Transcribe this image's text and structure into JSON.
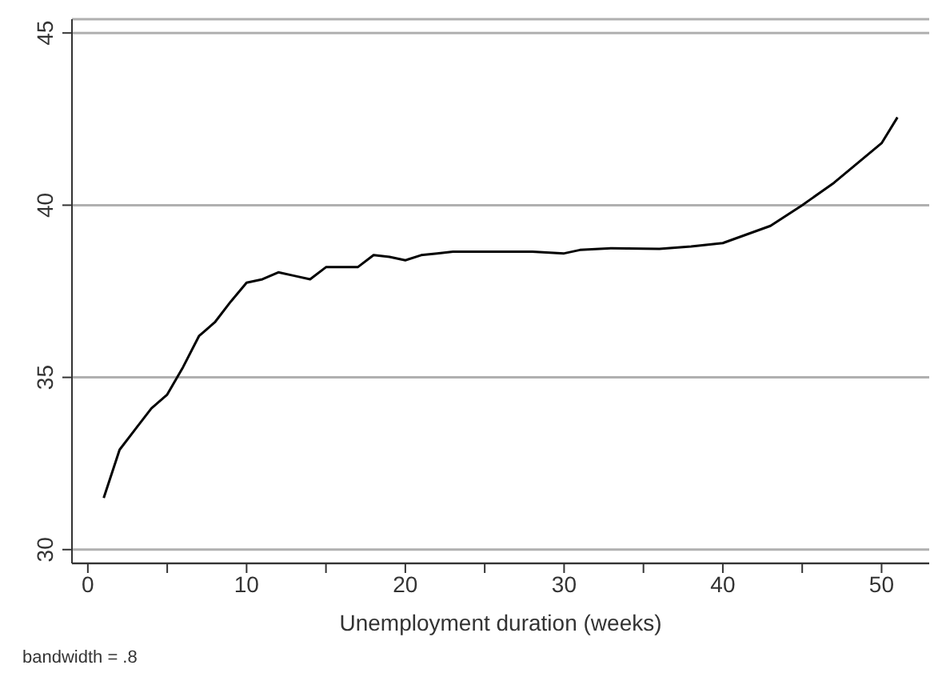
{
  "chart_data": {
    "type": "line",
    "xlabel": "Unemployment duration (weeks)",
    "annotations": [
      "bandwidth = .8"
    ],
    "x": [
      1,
      2,
      3,
      4,
      5,
      6,
      7,
      8,
      9,
      10,
      11,
      12,
      13,
      14,
      15,
      16,
      17,
      18,
      19,
      20,
      21,
      22,
      23,
      24,
      25,
      26,
      27,
      28,
      30,
      31,
      33,
      36,
      38,
      40,
      43,
      45,
      47,
      50,
      51
    ],
    "series": [
      {
        "color": "#000000",
        "values": [
          31.5,
          32.9,
          33.5,
          34.1,
          34.5,
          35.3,
          36.2,
          36.6,
          37.2,
          37.75,
          37.85,
          38.05,
          37.95,
          37.85,
          38.2,
          38.2,
          38.2,
          38.55,
          38.5,
          38.4,
          38.55,
          38.6,
          38.65,
          38.65,
          38.65,
          38.65,
          38.65,
          38.65,
          38.6,
          38.7,
          38.75,
          38.73,
          38.8,
          38.9,
          39.4,
          40.0,
          40.65,
          41.8,
          42.55
        ]
      }
    ],
    "xlim": [
      -1,
      53
    ],
    "xticks": [
      0,
      {
        "value": 5,
        "label": null
      },
      10,
      {
        "value": 15,
        "label": null
      },
      20,
      {
        "value": 25,
        "label": null
      },
      30,
      {
        "value": 35,
        "label": null
      },
      40,
      {
        "value": 45,
        "label": null
      },
      50
    ],
    "ylim": [
      29.6,
      45.4
    ],
    "yticks": [
      30,
      35,
      40,
      45
    ],
    "grid": "y",
    "legend": false,
    "marker": "none",
    "line_style": "solid"
  }
}
